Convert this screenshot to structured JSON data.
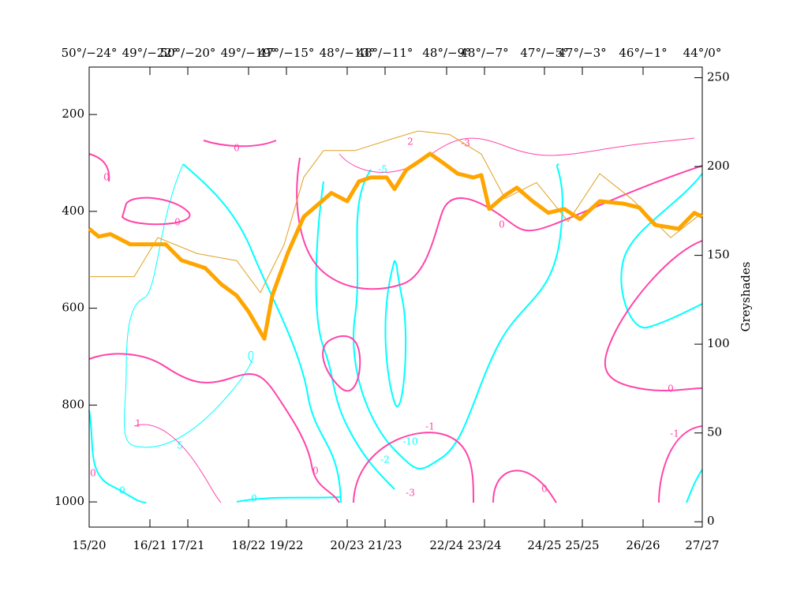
{
  "chart_data": {
    "type": "line",
    "y2_label": "Greyshades",
    "xlim": [
      0,
      777
    ],
    "xticks": [
      {
        "value": 0,
        "label": "15/20"
      },
      {
        "value": 77,
        "label": "16/21"
      },
      {
        "value": 125,
        "label": "17/21"
      },
      {
        "value": 202,
        "label": "18/22"
      },
      {
        "value": 250,
        "label": "19/22"
      },
      {
        "value": 327,
        "label": "20/23"
      },
      {
        "value": 375,
        "label": "21/23"
      },
      {
        "value": 453,
        "label": "22/24"
      },
      {
        "value": 501,
        "label": "23/24"
      },
      {
        "value": 577,
        "label": "24/25"
      },
      {
        "value": 625,
        "label": "25/25"
      },
      {
        "value": 702,
        "label": "26/26"
      },
      {
        "value": 777,
        "label": "27/27"
      }
    ],
    "top_labels": [
      "50°/−24°",
      "49°/−22°",
      "50°/−20°",
      "49°/−19°",
      "47°/−15°",
      "48°/−13°",
      "48°/−11°",
      "48°/−9°",
      "48°/−7°",
      "47°/−5°",
      "47°/−3°",
      "46°/−1°",
      "44°/0°"
    ],
    "ylim": [
      1052,
      102
    ],
    "yticks": [
      200,
      400,
      600,
      800,
      1000
    ],
    "y2lim": [
      -3,
      256
    ],
    "y2ticks": [
      0,
      50,
      100,
      150,
      200,
      250
    ],
    "series": [
      {
        "color": "#ffa500",
        "x": [
          0,
          12,
          27,
          52,
          97,
          117,
          147,
          167,
          187,
          202,
          222,
          232,
          252,
          272,
          287,
          307,
          327,
          342,
          357,
          377,
          387,
          402,
          417,
          432,
          447,
          467,
          487,
          497,
          507,
          527,
          542,
          562,
          582,
          602,
          622,
          647,
          677,
          697,
          717,
          747,
          767,
          777
        ],
        "values": [
          436,
          452,
          447,
          468,
          468,
          501,
          517,
          550,
          574,
          607,
          663,
          574,
          485,
          411,
          390,
          362,
          379,
          338,
          330,
          330,
          354,
          314,
          298,
          281,
          298,
          322,
          330,
          325,
          395,
          367,
          351,
          379,
          403,
          395,
          416,
          379,
          384,
          392,
          428,
          436,
          403,
          411
        ]
      },
      {
        "color": "#e0a020",
        "axis": "y2",
        "x": [
          0,
          57,
          87,
          137,
          187,
          217,
          247,
          272,
          297,
          337,
          387,
          417,
          457,
          497,
          527,
          567,
          607,
          647,
          687,
          737,
          777
        ],
        "values": [
          138,
          138,
          160,
          151,
          147,
          129,
          156,
          194,
          209,
          209,
          216,
          220,
          218,
          207,
          182,
          191,
          169,
          196,
          182,
          160,
          174
        ]
      }
    ],
    "contour_labels": [
      0,
      0,
      0,
      0,
      0,
      0,
      0,
      0,
      0,
      0,
      -1,
      -1,
      -5,
      -10,
      -2,
      -3,
      1,
      2,
      -3,
      5
    ]
  }
}
